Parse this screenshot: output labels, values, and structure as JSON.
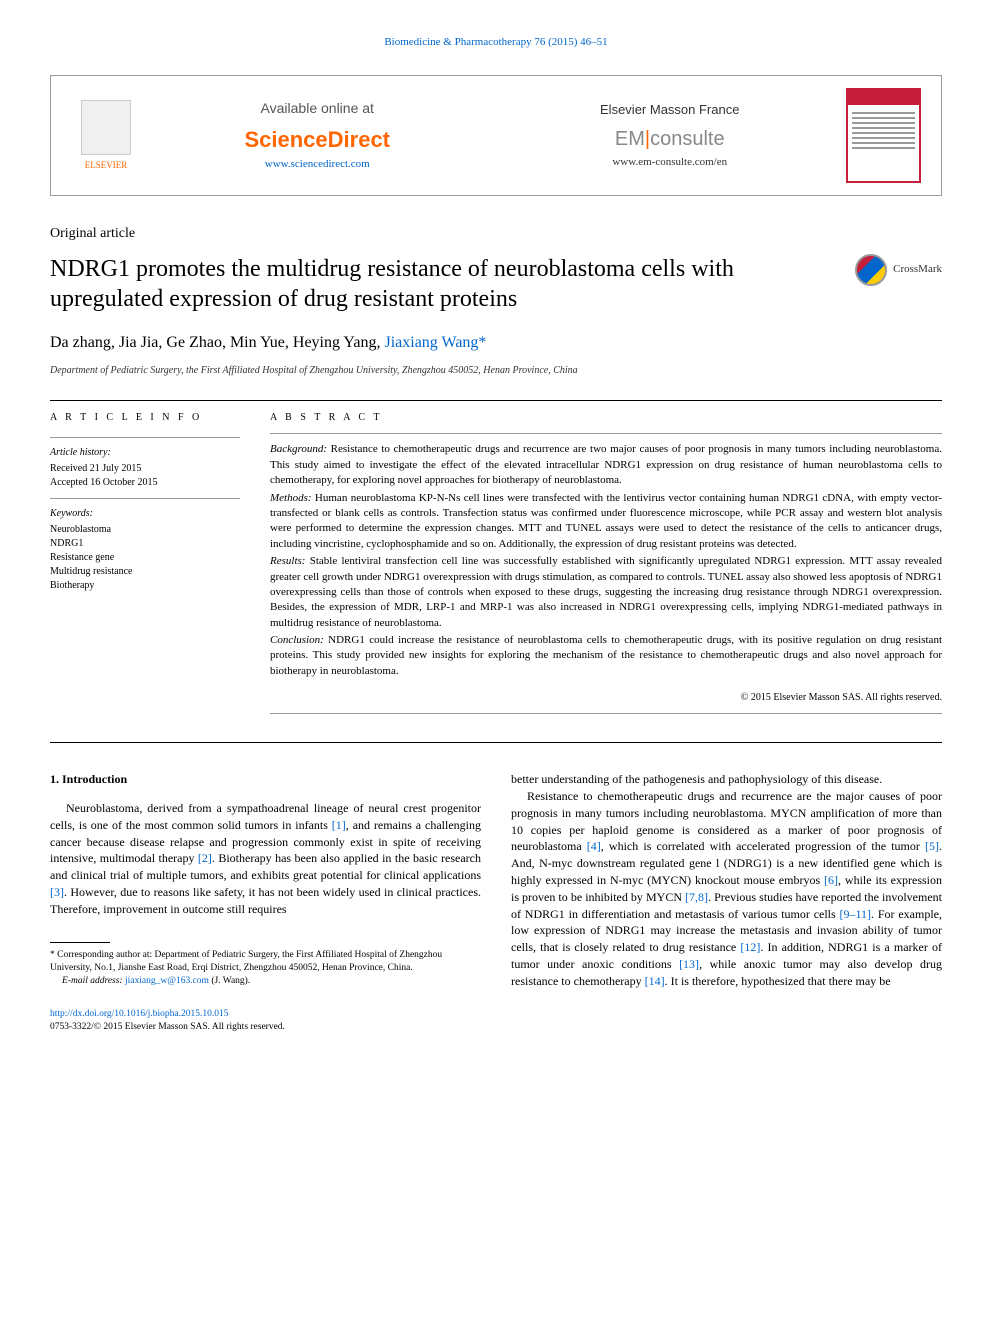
{
  "header": {
    "citation": "Biomedicine & Pharmacotherapy 76 (2015) 46–51",
    "available_online": "Available online at",
    "sciencedirect": "ScienceDirect",
    "sd_url": "www.sciencedirect.com",
    "em_france": "Elsevier Masson France",
    "em_prefix": "EM",
    "em_suffix": "consulte",
    "em_url": "www.em-consulte.com/en",
    "elsevier_label": "ELSEVIER",
    "crossmark": "CrossMark"
  },
  "article": {
    "type": "Original article",
    "title": "NDRG1 promotes the multidrug resistance of neuroblastoma cells with upregulated expression of drug resistant proteins",
    "authors_plain": "Da zhang, Jia Jia, Ge Zhao, Min Yue, Heying Yang, ",
    "author_corresponding": "Jiaxiang Wang",
    "author_marker": "*",
    "affiliation": "Department of Pediatric Surgery, the First Affiliated Hospital of Zhengzhou University, Zhengzhou 450052, Henan Province, China"
  },
  "info": {
    "heading": "A R T I C L E   I N F O",
    "history_label": "Article history:",
    "received": "Received 21 July 2015",
    "accepted": "Accepted 16 October 2015",
    "keywords_label": "Keywords:",
    "keywords": [
      "Neuroblastoma",
      "NDRG1",
      "Resistance gene",
      "Multidrug resistance",
      "Biotherapy"
    ]
  },
  "abstract": {
    "heading": "A B S T R A C T",
    "background_label": "Background:",
    "background": " Resistance to chemotherapeutic drugs and recurrence are two major causes of poor prognosis in many tumors including neuroblastoma. This study aimed to investigate the effect of the elevated intracellular NDRG1 expression on drug resistance of human neuroblastoma cells to chemotherapy, for exploring novel approaches for biotherapy of neuroblastoma.",
    "methods_label": "Methods:",
    "methods": " Human neuroblastoma KP-N-Ns cell lines were transfected with the lentivirus vector containing human NDRG1 cDNA, with empty vector-transfected or blank cells as controls. Transfection status was confirmed under fluorescence microscope, while PCR assay and western blot analysis were performed to determine the expression changes. MTT and TUNEL assays were used to detect the resistance of the cells to anticancer drugs, including vincristine, cyclophosphamide and so on. Additionally, the expression of drug resistant proteins was detected.",
    "results_label": "Results:",
    "results": " Stable lentiviral transfection cell line was successfully established with significantly upregulated NDRG1 expression. MTT assay revealed greater cell growth under NDRG1 overexpression with drugs stimulation, as compared to controls. TUNEL assay also showed less apoptosis of NDRG1 overexpressing cells than those of controls when exposed to these drugs, suggesting the increasing drug resistance through NDRG1 overexpression. Besides, the expression of MDR, LRP-1 and MRP-1 was also increased in NDRG1 overexpressing cells, implying NDRG1-mediated pathways in multidrug resistance of neuroblastoma.",
    "conclusion_label": "Conclusion:",
    "conclusion": " NDRG1 could increase the resistance of neuroblastoma cells to chemotherapeutic drugs, with its positive regulation on drug resistant proteins. This study provided new insights for exploring the mechanism of the resistance to chemotherapeutic drugs and also novel approach for biotherapy in neuroblastoma.",
    "copyright": "© 2015 Elsevier Masson SAS. All rights reserved."
  },
  "body": {
    "intro_heading": "1. Introduction",
    "col1_p1a": "Neuroblastoma, derived from a sympathoadrenal lineage of neural crest progenitor cells, is one of the most common solid tumors in infants ",
    "ref1": "[1]",
    "col1_p1b": ", and remains a challenging cancer because disease relapse and progression commonly exist in spite of receiving intensive, multimodal therapy ",
    "ref2": "[2]",
    "col1_p1c": ". Biotherapy has been also applied in the basic research and clinical trial of multiple tumors, and exhibits great potential for clinical applications ",
    "ref3": "[3]",
    "col1_p1d": ". However, due to reasons like safety, it has not been widely used in clinical practices. Therefore, improvement in outcome still requires",
    "col2_p1": "better understanding of the pathogenesis and pathophysiology of this disease.",
    "col2_p2a": "Resistance to chemotherapeutic drugs and recurrence are the major causes of poor prognosis in many tumors including neuroblastoma. MYCN amplification of more than 10 copies per haploid genome is considered as a marker of poor prognosis of neuroblastoma ",
    "ref4": "[4]",
    "col2_p2b": ", which is correlated with accelerated progression of the tumor ",
    "ref5": "[5]",
    "col2_p2c": ". And, N-myc downstream regulated gene l (NDRG1) is a new identified gene which is highly expressed in N-myc (MYCN) knockout mouse embryos ",
    "ref6": "[6]",
    "col2_p2d": ", while its expression is proven to be inhibited by MYCN ",
    "ref78": "[7,8]",
    "col2_p2e": ". Previous studies have reported the involvement of NDRG1 in differentiation and metastasis of various tumor cells ",
    "ref911": "[9–11]",
    "col2_p2f": ". For example, low expression of NDRG1 may increase the metastasis and invasion ability of tumor cells, that is closely related to drug resistance ",
    "ref12": "[12]",
    "col2_p2g": ". In addition, NDRG1 is a marker of tumor under anoxic conditions ",
    "ref13": "[13]",
    "col2_p2h": ", while anoxic tumor may also develop drug resistance to chemotherapy ",
    "ref14": "[14]",
    "col2_p2i": ". It is therefore, hypothesized that there may be"
  },
  "footnote": {
    "corresponding": "* Corresponding author at: Department of Pediatric Surgery, the First Affiliated Hospital of Zhengzhou University, No.1, Jianshe East Road, Erqi District, Zhengzhou 450052, Henan Province, China.",
    "email_label": "E-mail address: ",
    "email": "jiaxiang_w@163.com",
    "email_suffix": " (J. Wang)."
  },
  "footer": {
    "doi": "http://dx.doi.org/10.1016/j.biopha.2015.10.015",
    "issn_copyright": "0753-3322/© 2015 Elsevier Masson SAS. All rights reserved."
  }
}
